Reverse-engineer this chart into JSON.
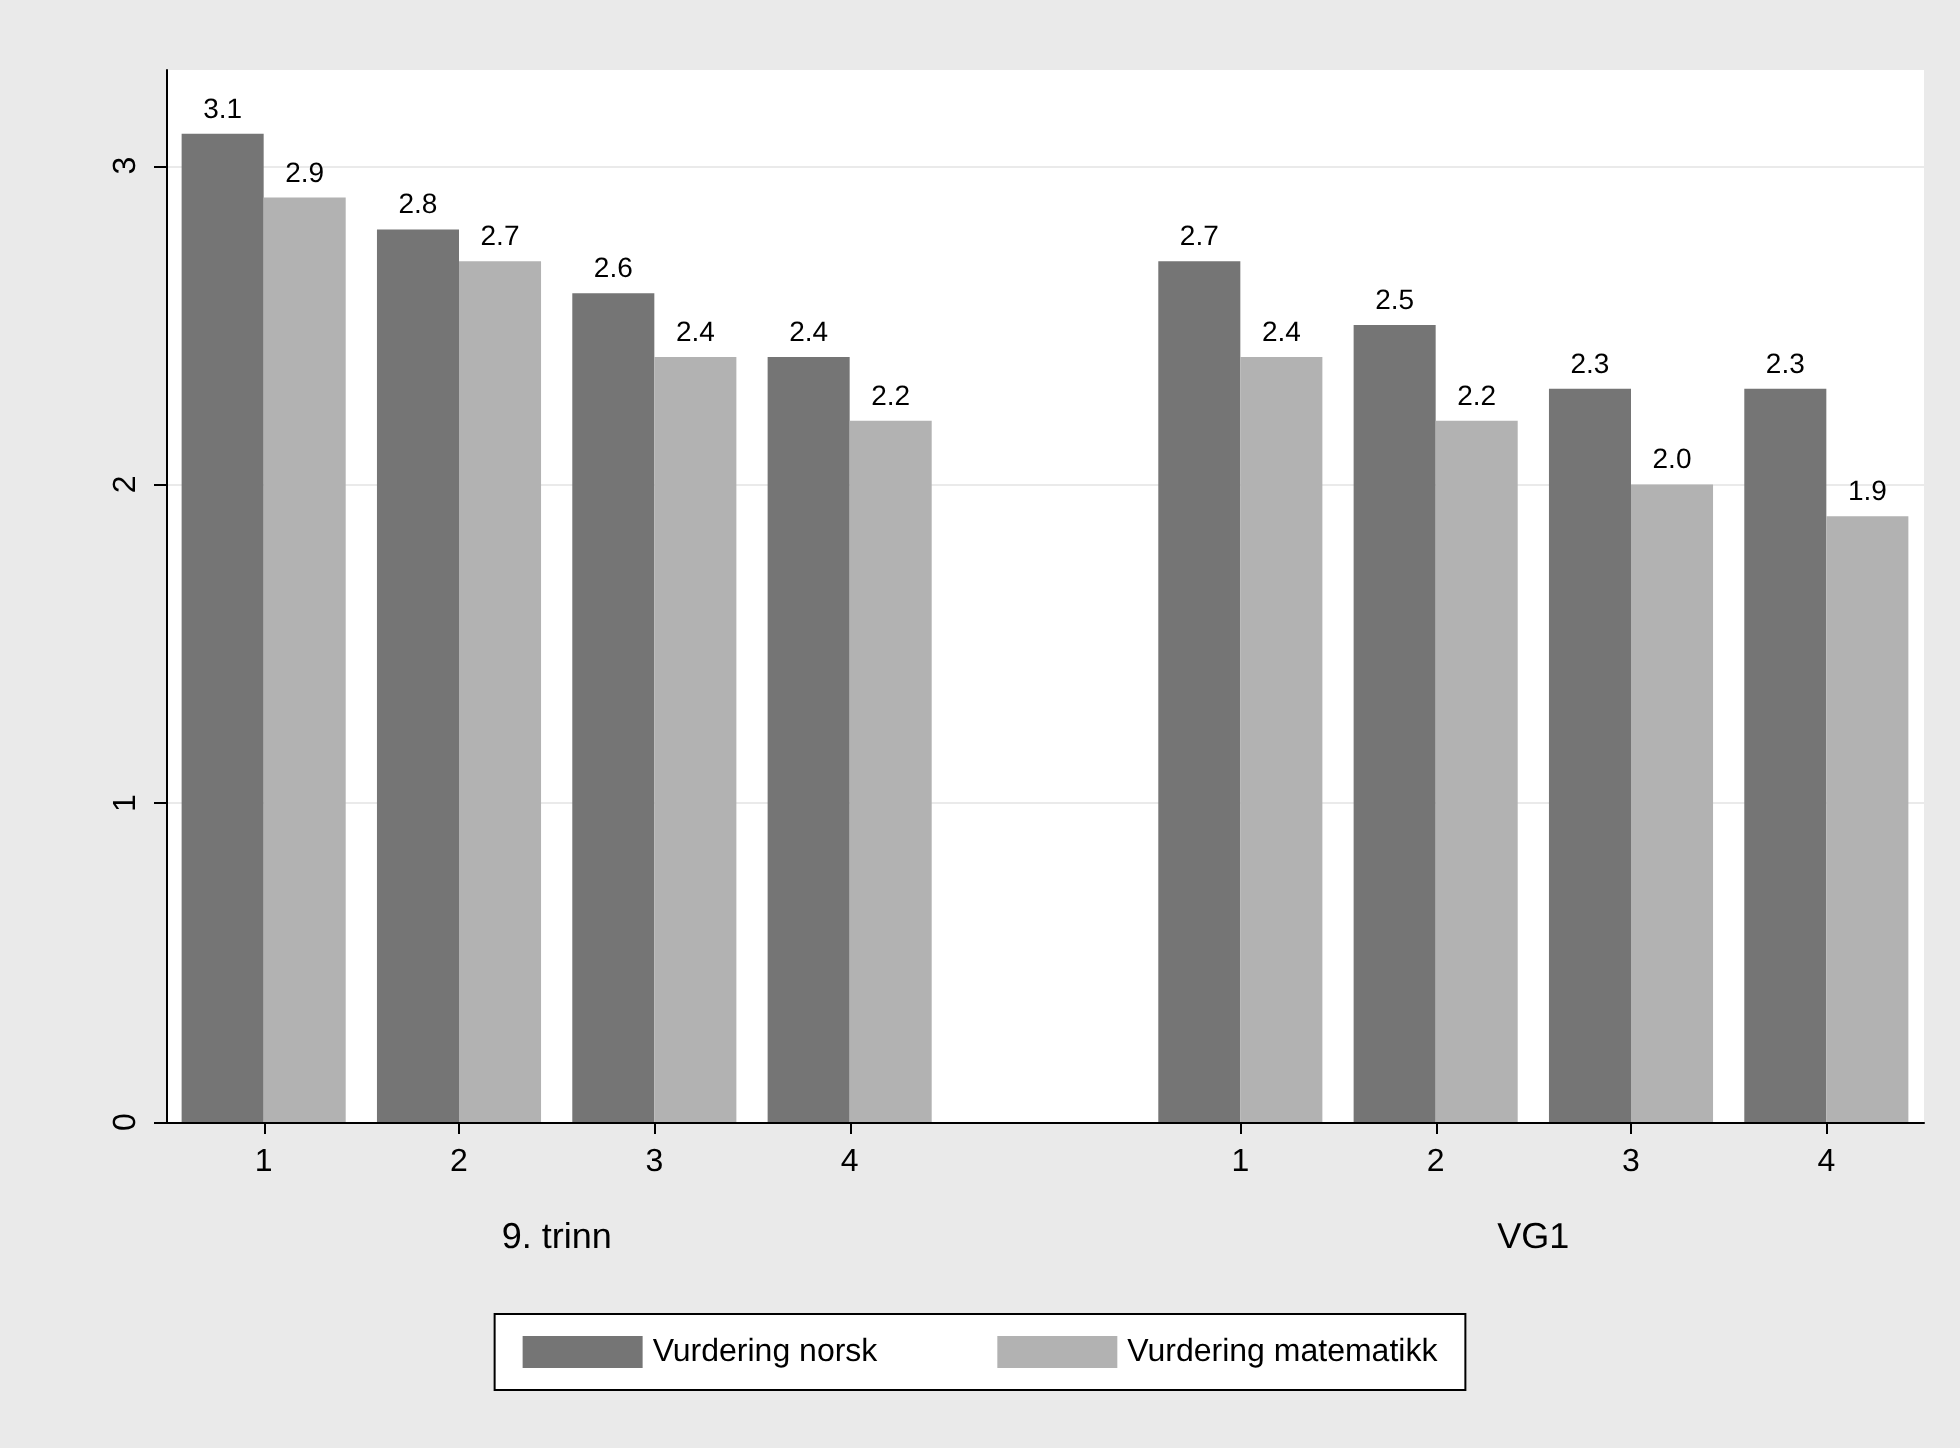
{
  "chart_data": {
    "type": "bar",
    "categories": [
      "1",
      "2",
      "3",
      "4",
      null,
      "1",
      "2",
      "3",
      "4"
    ],
    "series": [
      {
        "name": "Vurdering norsk",
        "color": "#757575",
        "values": [
          3.1,
          2.8,
          2.6,
          2.4,
          null,
          2.7,
          2.5,
          2.3,
          2.3
        ],
        "value_labels": [
          "3.1",
          "2.8",
          "2.6",
          "2.4",
          null,
          "2.7",
          "2.5",
          "2.3",
          "2.3"
        ]
      },
      {
        "name": "Vurdering matematikk",
        "color": "#b2b2b2",
        "values": [
          2.9,
          2.7,
          2.4,
          2.2,
          null,
          2.4,
          2.2,
          2.0,
          1.9
        ],
        "value_labels": [
          "2.9",
          "2.7",
          "2.4",
          "2.2",
          null,
          "2.4",
          "2.2",
          "2.0",
          "1.9"
        ]
      }
    ],
    "annotations": [
      "9. trinn",
      "VG1"
    ],
    "ylim": [
      0,
      3.3
    ],
    "yticks": [
      0,
      1,
      2,
      3
    ],
    "grid": "y",
    "legend": "bottom"
  }
}
